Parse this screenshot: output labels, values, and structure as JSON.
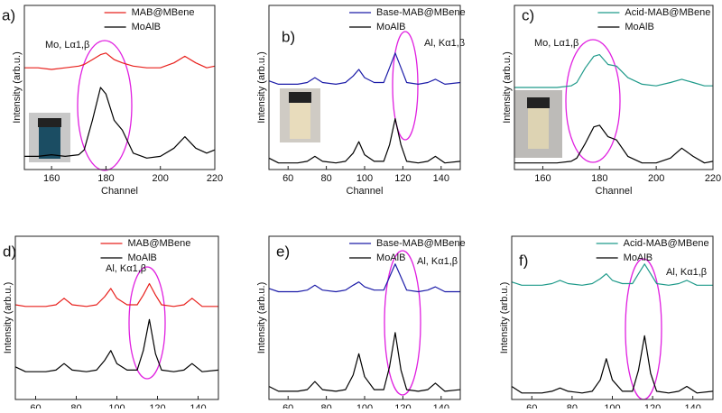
{
  "chart_data": [
    {
      "type": "line",
      "panel_label": "a)",
      "annotation": "Mo, Lα1,β",
      "xlabel": "Channel",
      "ylabel": "Intensity (arb.u.)",
      "xlim": [
        150,
        220
      ],
      "xticks": [
        160,
        180,
        200,
        220
      ],
      "ylim": [
        0,
        100
      ],
      "x": [
        150,
        155,
        160,
        165,
        170,
        172,
        175,
        178,
        180,
        183,
        186,
        190,
        195,
        200,
        205,
        209,
        213,
        217,
        220
      ],
      "series": [
        {
          "name": "MAB@MBene",
          "color": "#e8201c",
          "values": [
            62,
            62,
            61,
            62,
            63,
            64,
            67,
            70,
            71,
            67,
            65,
            63,
            62,
            62,
            65,
            69,
            65,
            62,
            63
          ]
        },
        {
          "name": "MoAlB",
          "color": "#000000",
          "values": [
            8,
            8,
            9,
            8,
            9,
            12,
            30,
            50,
            46,
            30,
            24,
            10,
            7,
            8,
            13,
            20,
            13,
            10,
            12
          ]
        }
      ]
    },
    {
      "type": "line",
      "panel_label": "b)",
      "annotation": "Al, Kα1,β",
      "xlabel": "Channel",
      "ylabel": "Intensity (arb.u.)",
      "xlim": [
        50,
        150
      ],
      "xticks": [
        60,
        80,
        100,
        120,
        140
      ],
      "ylim": [
        0,
        100
      ],
      "x": [
        50,
        55,
        60,
        65,
        70,
        74,
        78,
        85,
        90,
        94,
        97,
        100,
        105,
        110,
        113,
        116,
        119,
        122,
        128,
        133,
        137,
        142,
        150
      ],
      "series": [
        {
          "name": "Base-MAB@MBene",
          "color": "#1c1ca8",
          "values": [
            54,
            52,
            52,
            52,
            53,
            56,
            53,
            52,
            53,
            57,
            61,
            56,
            53,
            53,
            62,
            71,
            62,
            53,
            52,
            53,
            55,
            52,
            53
          ]
        },
        {
          "name": "MoAlB",
          "color": "#000000",
          "values": [
            7,
            4,
            4,
            4,
            5,
            8,
            5,
            4,
            5,
            10,
            17,
            9,
            5,
            5,
            15,
            31,
            15,
            5,
            4,
            5,
            8,
            4,
            5
          ]
        }
      ]
    },
    {
      "type": "line",
      "panel_label": "c)",
      "annotation": "Mo, Lα1,β",
      "xlabel": "Channel",
      "ylabel": "Intensity (arb.u.)",
      "xlim": [
        150,
        220
      ],
      "xticks": [
        160,
        180,
        200,
        220
      ],
      "ylim": [
        0,
        100
      ],
      "x": [
        150,
        155,
        160,
        165,
        170,
        172,
        175,
        178,
        180,
        183,
        186,
        190,
        195,
        200,
        205,
        209,
        213,
        217,
        220
      ],
      "series": [
        {
          "name": "Acid-MAB@MBene",
          "color": "#1f9a8a",
          "values": [
            50,
            50,
            50,
            50,
            51,
            53,
            62,
            69,
            70,
            64,
            63,
            56,
            52,
            51,
            53,
            55,
            53,
            51,
            51
          ]
        },
        {
          "name": "MoAlB",
          "color": "#000000",
          "values": [
            4,
            4,
            4,
            4,
            5,
            7,
            16,
            26,
            27,
            20,
            18,
            8,
            4,
            4,
            7,
            13,
            8,
            4,
            5
          ]
        }
      ]
    },
    {
      "type": "line",
      "panel_label": "d)",
      "annotation": "Al, Kα1,β",
      "xlabel": "Channel",
      "ylabel": "Intensity (arb.u.)",
      "xlim": [
        50,
        150
      ],
      "xticks": [
        60,
        80,
        100,
        120,
        140
      ],
      "ylim": [
        0,
        100
      ],
      "x": [
        50,
        55,
        60,
        65,
        70,
        74,
        78,
        85,
        90,
        94,
        97,
        100,
        105,
        110,
        113,
        116,
        119,
        122,
        128,
        133,
        137,
        142,
        150
      ],
      "series": [
        {
          "name": "MAB@MBene",
          "color": "#e8201c",
          "values": [
            58,
            57,
            57,
            57,
            58,
            62,
            58,
            57,
            58,
            63,
            68,
            62,
            58,
            58,
            64,
            71,
            64,
            58,
            57,
            58,
            62,
            57,
            57
          ]
        },
        {
          "name": "MoAlB",
          "color": "#000000",
          "values": [
            20,
            17,
            17,
            17,
            18,
            22,
            18,
            17,
            18,
            24,
            30,
            22,
            18,
            18,
            30,
            49,
            28,
            18,
            17,
            18,
            22,
            17,
            18
          ]
        }
      ]
    },
    {
      "type": "line",
      "panel_label": "e)",
      "annotation": "Al, Kα1,β",
      "xlabel": "Channel",
      "ylabel": "Intensity (arb.u.)",
      "xlim": [
        50,
        150
      ],
      "xticks": [
        60,
        80,
        100,
        120,
        140
      ],
      "ylim": [
        0,
        100
      ],
      "x": [
        50,
        55,
        60,
        65,
        70,
        74,
        78,
        85,
        90,
        94,
        97,
        100,
        105,
        110,
        113,
        116,
        119,
        122,
        128,
        133,
        137,
        142,
        150
      ],
      "series": [
        {
          "name": "Base-MAB@MBene",
          "color": "#1c1ca8",
          "values": [
            68,
            66,
            66,
            66,
            67,
            70,
            67,
            66,
            67,
            70,
            72,
            69,
            67,
            67,
            75,
            83,
            75,
            67,
            66,
            67,
            69,
            66,
            66
          ]
        },
        {
          "name": "MoAlB",
          "color": "#000000",
          "values": [
            8,
            5,
            5,
            5,
            6,
            11,
            6,
            5,
            6,
            15,
            28,
            14,
            6,
            6,
            20,
            41,
            18,
            6,
            5,
            6,
            10,
            5,
            6
          ]
        }
      ]
    },
    {
      "type": "line",
      "panel_label": "f)",
      "annotation": "Al, Kα1,β",
      "xlabel": "Channel",
      "ylabel": "Intensity (arb.u.)",
      "xlim": [
        50,
        150
      ],
      "xticks": [
        60,
        80,
        100,
        120,
        140
      ],
      "ylim": [
        0,
        100
      ],
      "x": [
        50,
        55,
        60,
        65,
        70,
        74,
        78,
        85,
        90,
        94,
        97,
        100,
        105,
        110,
        113,
        116,
        119,
        122,
        128,
        133,
        137,
        142,
        150
      ],
      "series": [
        {
          "name": "Acid-MAB@MBene",
          "color": "#1f9a8a",
          "values": [
            72,
            70,
            70,
            70,
            71,
            73,
            71,
            70,
            71,
            74,
            77,
            73,
            71,
            71,
            77,
            83,
            77,
            71,
            70,
            71,
            73,
            70,
            70
          ]
        },
        {
          "name": "MoAlB",
          "color": "#000000",
          "values": [
            8,
            4,
            4,
            4,
            5,
            7,
            5,
            4,
            5,
            12,
            25,
            12,
            5,
            5,
            18,
            39,
            16,
            5,
            4,
            5,
            8,
            4,
            5
          ]
        }
      ]
    }
  ]
}
